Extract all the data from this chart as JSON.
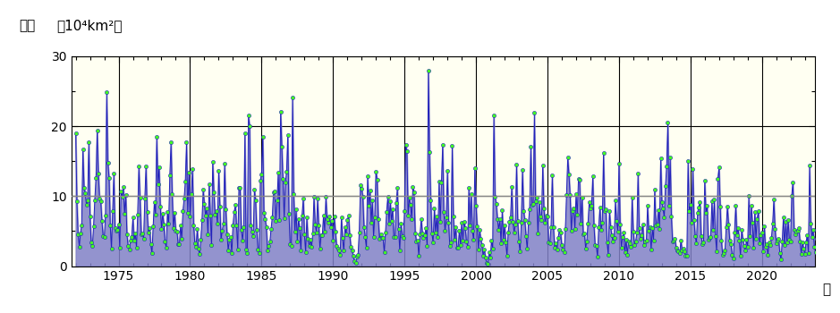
{
  "ylabel_line1": "面積",
  "ylabel_line2": "（10⁴km²）",
  "xlabel_end": "年",
  "year_start": 1972,
  "year_end": 2023,
  "n_months": 624,
  "ylim": [
    0,
    30
  ],
  "yticks": [
    0,
    10,
    20,
    30
  ],
  "xticks": [
    1975,
    1980,
    1985,
    1990,
    1995,
    2000,
    2005,
    2010,
    2015,
    2020
  ],
  "mean_line_y": 10.0,
  "bg_color": "#fffff2",
  "fill_color": "#8080c8",
  "line_color": "#2222bb",
  "dot_fill": "#44ff22",
  "dot_edge": "#2222bb",
  "mean_line_color": "#888888",
  "grid_color": "#000000",
  "seed": 12345
}
